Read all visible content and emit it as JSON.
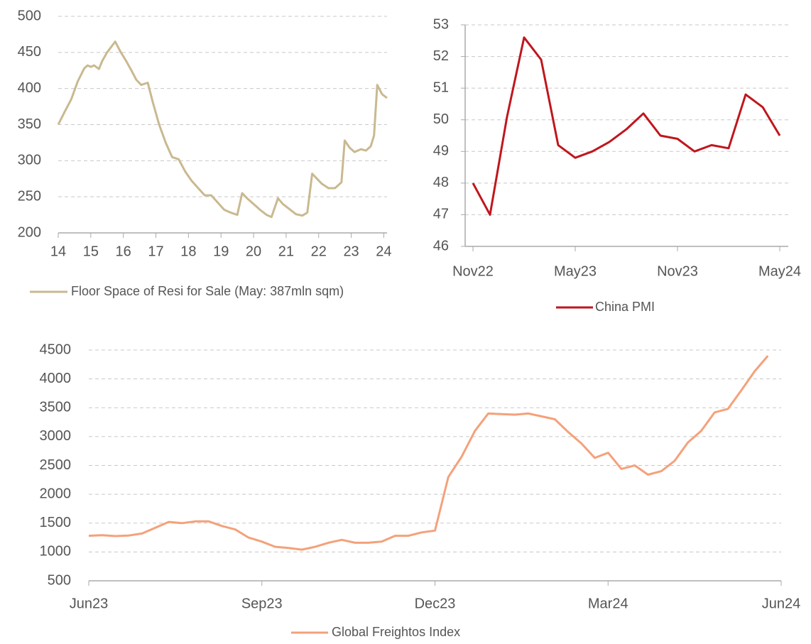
{
  "chart_data": [
    {
      "type": "line",
      "x": [
        14.0,
        14.2,
        14.4,
        14.6,
        14.8,
        14.9,
        15.0,
        15.1,
        15.25,
        15.35,
        15.5,
        15.75,
        15.9,
        16.1,
        16.25,
        16.4,
        16.55,
        16.75,
        16.9,
        17.1,
        17.3,
        17.5,
        17.7,
        17.9,
        18.1,
        18.3,
        18.5,
        18.7,
        18.9,
        19.1,
        19.3,
        19.5,
        19.65,
        19.8,
        20.0,
        20.2,
        20.4,
        20.55,
        20.75,
        20.9,
        21.1,
        21.3,
        21.5,
        21.65,
        21.8,
        21.95,
        22.1,
        22.3,
        22.5,
        22.7,
        22.8,
        22.95,
        23.1,
        23.3,
        23.45,
        23.6,
        23.7,
        23.8,
        23.95,
        24.1
      ],
      "series": [
        {
          "name": "Floor Space of Resi for Sale (May: 387mln sqm)",
          "color": "#c9b98f",
          "values": [
            350,
            368,
            385,
            410,
            428,
            432,
            430,
            432,
            427,
            438,
            450,
            465,
            452,
            437,
            425,
            412,
            405,
            408,
            382,
            350,
            325,
            305,
            302,
            285,
            272,
            262,
            252,
            252,
            242,
            232,
            228,
            225,
            255,
            248,
            240,
            232,
            225,
            222,
            248,
            240,
            233,
            226,
            224,
            228,
            282,
            275,
            268,
            262,
            262,
            270,
            328,
            318,
            312,
            316,
            314,
            320,
            335,
            405,
            392,
            387
          ]
        }
      ],
      "xlim": [
        14,
        24.1
      ],
      "xticks": [
        14,
        15,
        16,
        17,
        18,
        19,
        20,
        21,
        22,
        23,
        24
      ],
      "ylim": [
        200,
        500
      ],
      "yticks": [
        200,
        250,
        300,
        350,
        400,
        450,
        500
      ],
      "grid": true
    },
    {
      "type": "line",
      "categories": [
        "Nov22",
        null,
        null,
        null,
        null,
        null,
        "May23",
        null,
        null,
        null,
        null,
        null,
        "Nov23",
        null,
        null,
        null,
        null,
        null,
        "May24"
      ],
      "series": [
        {
          "name": "China PMI",
          "color": "#c0161d",
          "values": [
            48.0,
            47.0,
            50.1,
            52.6,
            51.9,
            49.2,
            48.8,
            49.0,
            49.3,
            49.7,
            50.2,
            49.5,
            49.4,
            49.0,
            49.2,
            49.1,
            50.8,
            50.4,
            49.5
          ]
        }
      ],
      "ylim": [
        46,
        53
      ],
      "yticks": [
        46,
        47,
        48,
        49,
        50,
        51,
        52,
        53
      ],
      "grid": true
    },
    {
      "type": "line",
      "categories": [
        "Jun23",
        null,
        null,
        null,
        null,
        null,
        null,
        null,
        null,
        null,
        null,
        null,
        null,
        "Sep23",
        null,
        null,
        null,
        null,
        null,
        null,
        null,
        null,
        null,
        null,
        null,
        null,
        "Dec23",
        null,
        null,
        null,
        null,
        null,
        null,
        null,
        null,
        null,
        null,
        null,
        null,
        "Mar24",
        null,
        null,
        null,
        null,
        null,
        null,
        null,
        null,
        null,
        null,
        null,
        null,
        "Jun24"
      ],
      "series": [
        {
          "name": "Global Freightos Index",
          "color": "#f4a17a",
          "values": [
            1280,
            1290,
            1275,
            1285,
            1320,
            1420,
            1520,
            1500,
            1530,
            1530,
            1450,
            1390,
            1250,
            1180,
            1090,
            1070,
            1040,
            1090,
            1160,
            1210,
            1160,
            1160,
            1180,
            1280,
            1280,
            1340,
            1370,
            2300,
            2650,
            3100,
            3400,
            3390,
            3380,
            3400,
            3350,
            3300,
            3080,
            2880,
            2630,
            2720,
            2440,
            2500,
            2340,
            2400,
            2580,
            2900,
            3100,
            3420,
            3480,
            3800,
            4130,
            4400,
            null
          ]
        }
      ],
      "ylim": [
        500,
        4500
      ],
      "yticks": [
        500,
        1000,
        1500,
        2000,
        2500,
        3000,
        3500,
        4000,
        4500
      ],
      "grid": true
    }
  ]
}
